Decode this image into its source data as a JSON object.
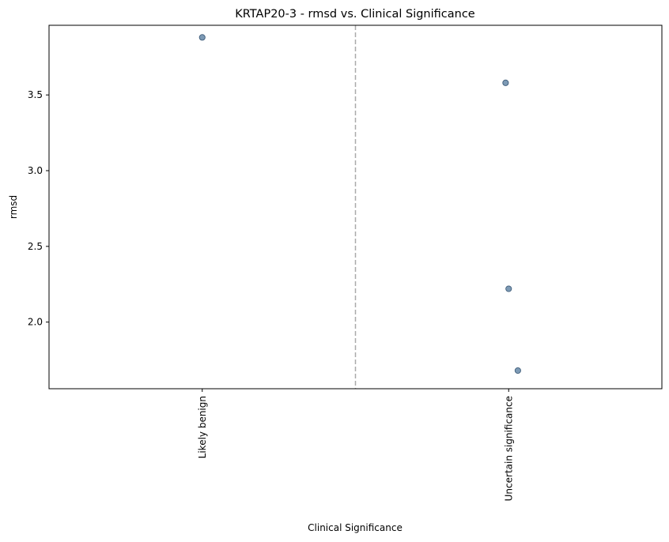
{
  "chart_data": {
    "type": "scatter",
    "title": "KRTAP20-3 - rmsd vs. Clinical Significance",
    "xlabel": "Clinical Significance",
    "ylabel": "rmsd",
    "categories": [
      "Likely benign",
      "Uncertain significance"
    ],
    "points": [
      {
        "category": "Likely benign",
        "jitter": 0.0,
        "y": 3.88
      },
      {
        "category": "Uncertain significance",
        "jitter": -0.01,
        "y": 3.58
      },
      {
        "category": "Uncertain significance",
        "jitter": 0.0,
        "y": 2.22
      },
      {
        "category": "Uncertain significance",
        "jitter": 0.03,
        "y": 1.68
      }
    ],
    "yticks": [
      "2.0",
      "2.5",
      "3.0",
      "3.5"
    ],
    "ylim": [
      1.56,
      3.96
    ],
    "xlim": [
      -0.5,
      1.5
    ],
    "divider_at": 0.5,
    "grid": false,
    "colors": {
      "point_fill": "#6f8fad",
      "point_edge": "#3f5d7a",
      "divider": "#aaaaaa"
    }
  }
}
